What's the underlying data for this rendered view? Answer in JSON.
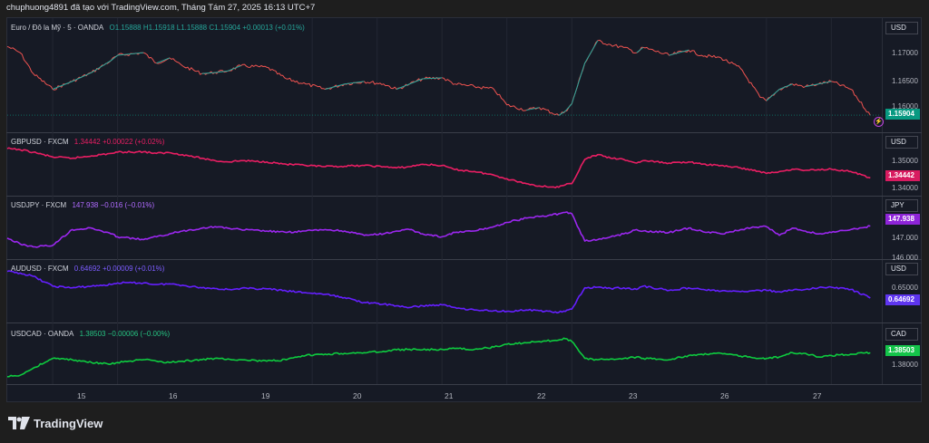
{
  "header": {
    "caption": "chuphuong4891 đã tạo với TradingView.com, Tháng Tám 27, 2025 16:13 UTC+7"
  },
  "chart_data": [
    {
      "type": "line",
      "pane": "eurusd",
      "symbol": "Euro / Đô la Mỹ · 5 · OANDA",
      "ohlc_text": "O1.15888 H1.15918 L1.15888 C1.15904 +0.00013 (+0.01%)",
      "unit": "USD",
      "color": "#ef5350",
      "color_up": "#26a69a",
      "last_value": 1.15904,
      "last_label": "1.15904",
      "tag_color": "#089981",
      "y_ticks": [
        "1.17000",
        "1.16500",
        "1.16000"
      ],
      "ylim": [
        1.1568,
        1.1745
      ],
      "x": [
        14.3,
        14.5,
        14.7,
        15.0,
        15.3,
        15.6,
        15.9,
        16.0,
        16.4,
        16.6,
        16.8,
        17.0,
        17.3,
        17.5,
        17.7,
        17.9,
        18.3,
        18.6,
        18.9,
        19.2,
        19.5,
        19.8,
        20.1,
        20.3,
        20.5,
        20.7,
        21.0,
        21.2,
        21.5,
        21.8,
        22.0,
        22.3,
        22.5,
        22.8,
        22.9,
        23.0,
        23.2,
        23.4,
        23.6,
        23.8,
        24.0,
        24.1,
        24.5,
        24.8,
        25.0,
        25.3,
        25.6,
        25.9,
        26.0,
        26.2,
        26.4,
        26.6,
        26.8,
        27.0,
        27.3,
        27.6
      ],
      "y": [
        1.1722,
        1.171,
        1.167,
        1.164,
        1.1655,
        1.1672,
        1.1695,
        1.1705,
        1.171,
        1.169,
        1.17,
        1.1685,
        1.167,
        1.1672,
        1.1675,
        1.1685,
        1.1682,
        1.166,
        1.165,
        1.164,
        1.165,
        1.1655,
        1.165,
        1.164,
        1.165,
        1.166,
        1.1662,
        1.165,
        1.1645,
        1.164,
        1.161,
        1.16,
        1.1605,
        1.159,
        1.1598,
        1.1612,
        1.169,
        1.1733,
        1.1725,
        1.172,
        1.171,
        1.172,
        1.1705,
        1.1715,
        1.1705,
        1.17,
        1.168,
        1.1625,
        1.1618,
        1.164,
        1.165,
        1.1645,
        1.165,
        1.1655,
        1.164,
        1.159
      ]
    },
    {
      "type": "line",
      "pane": "gbpusd",
      "symbol": "GBPUSD · FXCM",
      "ohlc_text": "1.34442 +0.00022 (+0.02%)",
      "unit": "USD",
      "color": "#e91e63",
      "last_value": 1.34442,
      "last_label": "1.34442",
      "tag_color": "#d81b60",
      "y_ticks": [
        "1.35000",
        "1.34000"
      ],
      "ylim": [
        1.3385,
        1.358
      ],
      "x": [
        14.3,
        14.5,
        14.7,
        15.0,
        15.3,
        15.6,
        15.9,
        16.0,
        16.4,
        16.6,
        16.8,
        17.0,
        17.3,
        17.5,
        17.7,
        17.9,
        18.3,
        18.6,
        18.9,
        19.2,
        19.5,
        19.8,
        20.1,
        20.3,
        20.5,
        20.7,
        21.0,
        21.2,
        21.5,
        21.8,
        22.0,
        22.3,
        22.5,
        22.8,
        22.9,
        23.0,
        23.2,
        23.4,
        23.6,
        23.8,
        24.0,
        24.1,
        24.5,
        24.8,
        25.0,
        25.3,
        25.6,
        25.9,
        26.0,
        26.2,
        26.4,
        26.6,
        26.8,
        27.0,
        27.3,
        27.6
      ],
      "y": [
        1.3565,
        1.356,
        1.355,
        1.353,
        1.3525,
        1.3535,
        1.3545,
        1.355,
        1.3552,
        1.3545,
        1.3548,
        1.354,
        1.3525,
        1.3515,
        1.351,
        1.3515,
        1.351,
        1.35,
        1.3495,
        1.349,
        1.3492,
        1.3495,
        1.349,
        1.3485,
        1.349,
        1.35,
        1.3495,
        1.3478,
        1.347,
        1.3455,
        1.344,
        1.342,
        1.341,
        1.3405,
        1.3415,
        1.342,
        1.352,
        1.354,
        1.3525,
        1.352,
        1.3505,
        1.3515,
        1.3505,
        1.351,
        1.35,
        1.3495,
        1.3485,
        1.347,
        1.3462,
        1.347,
        1.348,
        1.3475,
        1.3478,
        1.348,
        1.347,
        1.3444
      ]
    },
    {
      "type": "line",
      "pane": "usdjpy",
      "symbol": "USDJPY · FXCM",
      "ohlc_text": "147.938 −0.016 (−0.01%)",
      "unit": "JPY",
      "color": "#9c27f0",
      "last_value": 147.938,
      "last_label": "147.938",
      "tag_color": "#8e24d8",
      "y_ticks": [
        "147.000",
        "146.000"
      ],
      "ylim": [
        145.9,
        149.3
      ],
      "x": [
        14.3,
        14.5,
        14.7,
        15.0,
        15.3,
        15.6,
        15.9,
        16.0,
        16.4,
        16.6,
        16.8,
        17.0,
        17.3,
        17.5,
        17.7,
        17.9,
        18.3,
        18.6,
        18.9,
        19.2,
        19.5,
        19.8,
        20.1,
        20.3,
        20.5,
        20.7,
        21.0,
        21.2,
        21.5,
        21.8,
        22.0,
        22.3,
        22.5,
        22.8,
        22.9,
        23.0,
        23.2,
        23.4,
        23.6,
        23.8,
        24.0,
        24.1,
        24.5,
        24.8,
        25.0,
        25.3,
        25.6,
        25.9,
        26.0,
        26.2,
        26.4,
        26.6,
        26.8,
        27.0,
        27.3,
        27.6
      ],
      "y": [
        147.1,
        146.7,
        146.5,
        146.6,
        147.7,
        147.8,
        147.4,
        147.2,
        147.0,
        147.2,
        147.4,
        147.6,
        147.8,
        147.9,
        147.8,
        147.7,
        147.6,
        147.5,
        147.6,
        147.7,
        147.6,
        147.3,
        147.4,
        147.6,
        147.7,
        147.4,
        147.2,
        147.5,
        147.6,
        147.9,
        148.2,
        148.5,
        148.6,
        148.8,
        148.9,
        148.8,
        146.9,
        147.0,
        147.2,
        147.4,
        147.7,
        147.6,
        147.5,
        147.8,
        147.6,
        147.4,
        147.7,
        147.9,
        147.9,
        147.3,
        147.8,
        147.6,
        147.4,
        147.5,
        147.7,
        147.94
      ]
    },
    {
      "type": "line",
      "pane": "audusd",
      "symbol": "AUDUSD · FXCM",
      "ohlc_text": "0.64692 +0.00009 (+0.01%)",
      "unit": "USD",
      "color": "#651fff",
      "last_value": 0.64692,
      "last_label": "0.64692",
      "tag_color": "#5e35f0",
      "y_ticks": [
        "0.65000"
      ],
      "ylim": [
        0.6405,
        0.656
      ],
      "x": [
        14.3,
        14.5,
        14.7,
        15.0,
        15.3,
        15.6,
        15.9,
        16.0,
        16.4,
        16.6,
        16.8,
        17.0,
        17.3,
        17.5,
        17.7,
        17.9,
        18.3,
        18.6,
        18.9,
        19.2,
        19.5,
        19.8,
        20.1,
        20.3,
        20.5,
        20.7,
        21.0,
        21.2,
        21.5,
        21.8,
        22.0,
        22.3,
        22.5,
        22.8,
        22.9,
        23.0,
        23.2,
        23.4,
        23.6,
        23.8,
        24.0,
        24.1,
        24.5,
        24.8,
        25.0,
        25.3,
        25.6,
        25.9,
        26.0,
        26.2,
        26.4,
        26.6,
        26.8,
        27.0,
        27.3,
        27.6
      ],
      "y": [
        0.655,
        0.6545,
        0.6535,
        0.6505,
        0.65,
        0.6505,
        0.651,
        0.6515,
        0.6515,
        0.651,
        0.6512,
        0.6508,
        0.65,
        0.6498,
        0.6495,
        0.6498,
        0.6497,
        0.649,
        0.6485,
        0.648,
        0.647,
        0.6455,
        0.645,
        0.6445,
        0.644,
        0.6445,
        0.6448,
        0.644,
        0.6432,
        0.643,
        0.6428,
        0.6432,
        0.643,
        0.6425,
        0.6428,
        0.6435,
        0.65,
        0.6502,
        0.6498,
        0.65,
        0.6495,
        0.6505,
        0.6492,
        0.65,
        0.6495,
        0.649,
        0.6488,
        0.6492,
        0.6492,
        0.6488,
        0.6492,
        0.6495,
        0.65,
        0.6502,
        0.6495,
        0.6469
      ]
    },
    {
      "type": "line",
      "pane": "usdcad",
      "symbol": "USDCAD · OANDA",
      "ohlc_text": "1.38503 −0.00006 (−0.00%)",
      "unit": "CAD",
      "color": "#0ecb3f",
      "last_value": 1.38503,
      "last_label": "1.38503",
      "tag_color": "#14c44a",
      "y_ticks": [
        "1.38000"
      ],
      "ylim": [
        1.3745,
        1.3925
      ],
      "x": [
        14.3,
        14.5,
        14.7,
        15.0,
        15.3,
        15.6,
        15.9,
        16.0,
        16.4,
        16.6,
        16.8,
        17.0,
        17.3,
        17.5,
        17.7,
        17.9,
        18.3,
        18.6,
        18.9,
        19.2,
        19.5,
        19.8,
        20.1,
        20.3,
        20.5,
        20.7,
        21.0,
        21.2,
        21.5,
        21.8,
        22.0,
        22.3,
        22.5,
        22.8,
        22.9,
        23.0,
        23.2,
        23.4,
        23.6,
        23.8,
        24.0,
        24.1,
        24.5,
        24.8,
        25.0,
        25.3,
        25.6,
        25.9,
        26.0,
        26.2,
        26.4,
        26.6,
        26.8,
        27.0,
        27.3,
        27.6
      ],
      "y": [
        1.3765,
        1.377,
        1.3795,
        1.383,
        1.3825,
        1.3815,
        1.381,
        1.3815,
        1.3825,
        1.382,
        1.3815,
        1.382,
        1.3825,
        1.383,
        1.3828,
        1.3825,
        1.382,
        1.3825,
        1.384,
        1.3845,
        1.3848,
        1.385,
        1.3855,
        1.386,
        1.3862,
        1.386,
        1.3862,
        1.3865,
        1.3862,
        1.387,
        1.388,
        1.3885,
        1.389,
        1.3895,
        1.39,
        1.389,
        1.383,
        1.3825,
        1.3828,
        1.383,
        1.3835,
        1.383,
        1.3825,
        1.384,
        1.3845,
        1.3848,
        1.3838,
        1.383,
        1.383,
        1.3835,
        1.385,
        1.3848,
        1.3835,
        1.384,
        1.3845,
        1.385
      ]
    }
  ],
  "time_axis": {
    "ticks": [
      15,
      16,
      19,
      20,
      21,
      22,
      23,
      26,
      27
    ],
    "labels": [
      "15",
      "16",
      "19",
      "20",
      "21",
      "22",
      "23",
      "26",
      "27"
    ],
    "range": [
      14.3,
      27.75
    ]
  },
  "branding": {
    "logo_text": "TradingView"
  }
}
